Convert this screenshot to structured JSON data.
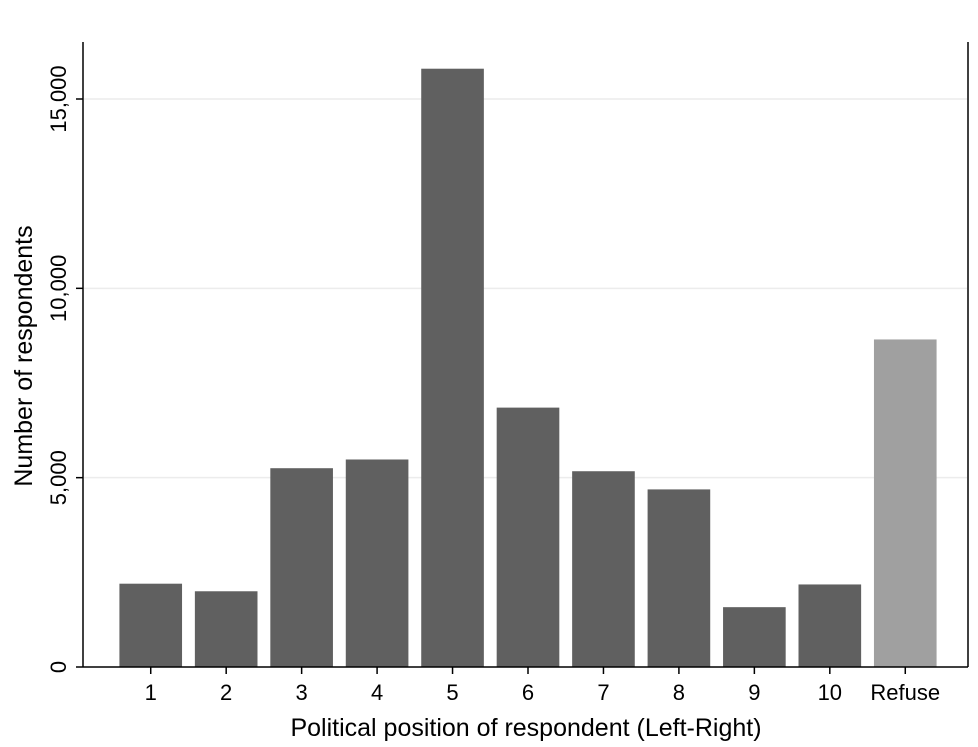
{
  "chart_data": {
    "type": "bar",
    "title": "",
    "xlabel": "Political position of respondent (Left-Right)",
    "ylabel": "Number of respondents",
    "categories": [
      "1",
      "2",
      "3",
      "4",
      "5",
      "6",
      "7",
      "8",
      "9",
      "10",
      "Refuse"
    ],
    "values": [
      2200,
      2000,
      5250,
      5480,
      15800,
      6850,
      5170,
      4690,
      1580,
      2180,
      8650
    ],
    "bar_colors": [
      "#606060",
      "#606060",
      "#606060",
      "#606060",
      "#606060",
      "#606060",
      "#606060",
      "#606060",
      "#606060",
      "#606060",
      "#a0a0a0"
    ],
    "ylim": [
      0,
      16500
    ],
    "yticks": [
      0,
      5000,
      10000,
      15000
    ],
    "ytick_labels": [
      "0",
      "5,000",
      "10,000",
      "15,000"
    ],
    "grid": true,
    "legend": "none"
  }
}
